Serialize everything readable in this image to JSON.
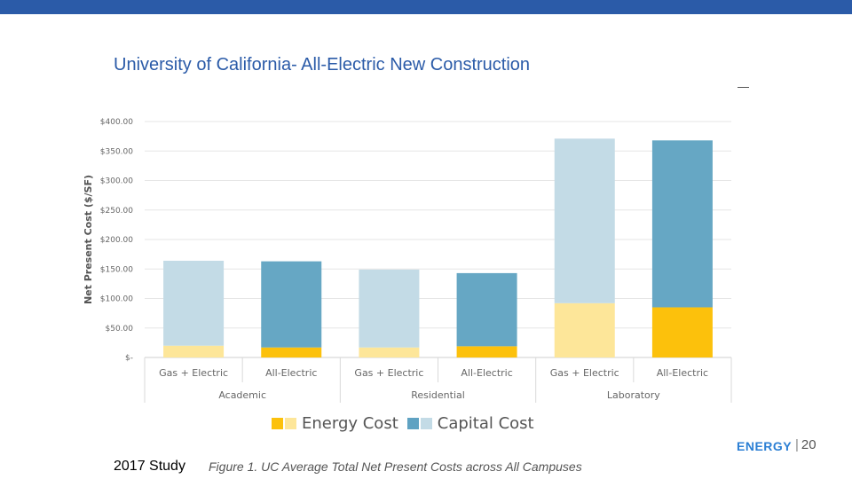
{
  "slide": {
    "title": "University of California- All-Electric New Construction",
    "study_label": "2017 Study",
    "caption": "Figure 1. UC Average Total Net Present Costs across All Campuses",
    "brand": "ENERGY",
    "page_number": "20",
    "colors": {
      "header_bar": "#2b5ba8",
      "title": "#2b5ba8",
      "brand": "#2b7fd4"
    }
  },
  "chart_data": {
    "type": "bar",
    "stacked": true,
    "ylabel": "Net Present Cost ($/SF)",
    "ylim": [
      0,
      400
    ],
    "yticks": [
      0,
      50,
      100,
      150,
      200,
      250,
      300,
      350,
      400
    ],
    "ytick_labels": [
      "$-",
      "$50.00",
      "$100.00",
      "$150.00",
      "$200.00",
      "$250.00",
      "$300.00",
      "$350.00",
      "$400.00"
    ],
    "grid": true,
    "groups": [
      "Academic",
      "Residential",
      "Laboratory"
    ],
    "categories": [
      "Gas + Electric",
      "All-Electric",
      "Gas + Electric",
      "All-Electric",
      "Gas + Electric",
      "All-Electric"
    ],
    "legend_position": "bottom",
    "legend": [
      {
        "label": "Energy Cost",
        "swatches": [
          "#fcc10c",
          "#fde699"
        ]
      },
      {
        "label": "Capital Cost",
        "swatches": [
          "#5fa2c2",
          "#c3dbe6"
        ]
      }
    ],
    "series": [
      {
        "name": "Energy Cost",
        "values": [
          20,
          17,
          17,
          19,
          92,
          85
        ],
        "colors": [
          "#fde699",
          "#fcc10c",
          "#fde699",
          "#fcc10c",
          "#fde699",
          "#fcc10c"
        ]
      },
      {
        "name": "Capital Cost",
        "values": [
          144,
          146,
          132,
          124,
          279,
          283
        ],
        "colors": [
          "#c3dbe6",
          "#66a7c4",
          "#c3dbe6",
          "#66a7c4",
          "#c3dbe6",
          "#66a7c4"
        ]
      }
    ]
  }
}
